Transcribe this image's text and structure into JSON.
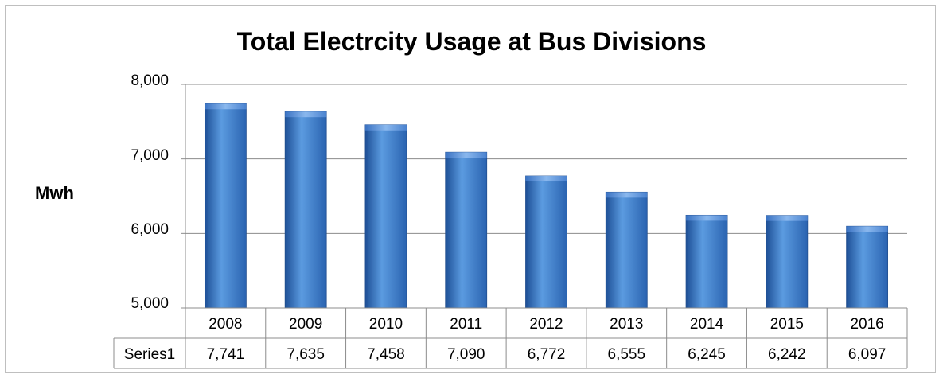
{
  "chart_data": {
    "type": "bar",
    "title": "Total Electrcity Usage at Bus Divisions",
    "ylabel": "Mwh",
    "categories": [
      "2008",
      "2009",
      "2010",
      "2011",
      "2012",
      "2013",
      "2014",
      "2015",
      "2016"
    ],
    "series": [
      {
        "name": "Series1",
        "values": [
          7741,
          7635,
          7458,
          7090,
          6772,
          6555,
          6245,
          6242,
          6097
        ],
        "labels": [
          "7,741",
          "7,635",
          "7,458",
          "7,090",
          "6,772",
          "6,555",
          "6,245",
          "6,242",
          "6,097"
        ]
      }
    ],
    "ylim": [
      5000,
      8000
    ],
    "yticks": [
      5000,
      6000,
      7000,
      8000
    ],
    "ytick_labels": [
      "5,000",
      "6,000",
      "7,000",
      "8,000"
    ],
    "grid": true,
    "data_table": true,
    "bar_color": "#3f7fd0"
  }
}
